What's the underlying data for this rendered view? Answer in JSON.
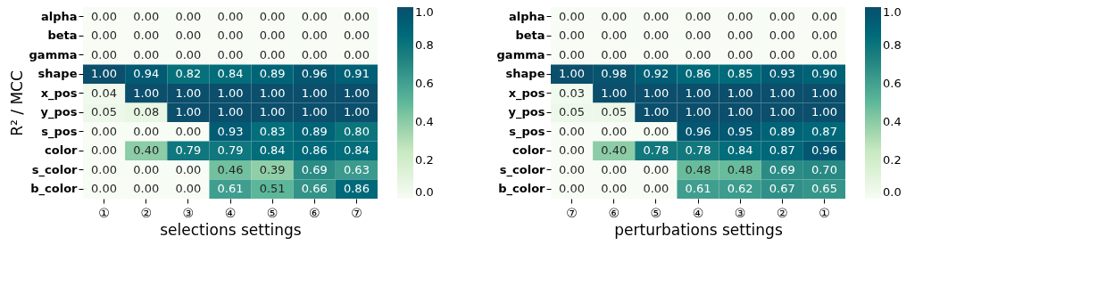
{
  "chart_data": [
    {
      "type": "heatmap",
      "xlabel": "selections settings",
      "ylabel": "R² / MCC",
      "categories": [
        "①",
        "②",
        "③",
        "④",
        "⑤",
        "⑥",
        "⑦"
      ],
      "y_categories": [
        "alpha",
        "beta",
        "gamma",
        "shape",
        "x_pos",
        "y_pos",
        "s_pos",
        "color",
        "s_color",
        "b_color"
      ],
      "cells": [
        [
          0.0,
          0.0,
          0.0,
          0.0,
          0.0,
          0.0,
          0.0
        ],
        [
          0.0,
          0.0,
          0.0,
          0.0,
          0.0,
          0.0,
          0.0
        ],
        [
          0.0,
          0.0,
          0.0,
          0.0,
          0.0,
          0.0,
          0.0
        ],
        [
          1.0,
          0.94,
          0.82,
          0.84,
          0.89,
          0.96,
          0.91
        ],
        [
          0.04,
          1.0,
          1.0,
          1.0,
          1.0,
          1.0,
          1.0
        ],
        [
          0.05,
          0.08,
          1.0,
          1.0,
          1.0,
          1.0,
          1.0
        ],
        [
          0.0,
          0.0,
          0.0,
          0.93,
          0.83,
          0.89,
          0.8
        ],
        [
          0.0,
          0.4,
          0.79,
          0.79,
          0.84,
          0.86,
          0.84
        ],
        [
          0.0,
          0.0,
          0.0,
          0.46,
          0.39,
          0.69,
          0.63
        ],
        [
          0.0,
          0.0,
          0.0,
          0.61,
          0.51,
          0.66,
          0.86
        ]
      ],
      "cell_labels": [
        [
          "0.00",
          "0.00",
          "0.00",
          "0.00",
          "0.00",
          "0.00",
          "0.00"
        ],
        [
          "0.00",
          "0.00",
          "0.00",
          "0.00",
          "0.00",
          "0.00",
          "0.00"
        ],
        [
          "0.00",
          "0.00",
          "0.00",
          "0.00",
          "0.00",
          "0.00",
          "0.00"
        ],
        [
          "1.00",
          "0.94",
          "0.82",
          "0.84",
          "0.89",
          "0.96",
          "0.91"
        ],
        [
          "0.04",
          "1.00",
          "1.00",
          "1.00",
          "1.00",
          "1.00",
          "1.00"
        ],
        [
          "0.05",
          "0.08",
          "1.00",
          "1.00",
          "1.00",
          "1.00",
          "1.00"
        ],
        [
          "0.00",
          "0.00",
          "0.00",
          "0.93",
          "0.83",
          "0.89",
          "0.80"
        ],
        [
          "0.00",
          "0.40",
          "0.79",
          "0.79",
          "0.84",
          "0.86",
          "0.84"
        ],
        [
          "0.00",
          "0.00",
          "0.00",
          "0.46",
          "0.39",
          "0.69",
          "0.63"
        ],
        [
          "0.00",
          "0.00",
          "0.00",
          "0.61",
          "0.51",
          "0.66",
          "0.86"
        ]
      ],
      "data_labels": true,
      "clim": [
        0,
        1
      ],
      "cticks": [
        {
          "value": 0,
          "label": "0.0"
        },
        {
          "value": 0.2,
          "label": "0.2"
        },
        {
          "value": 0.4,
          "label": "0.4"
        },
        {
          "value": 0.6,
          "label": "0.6"
        },
        {
          "value": 0.8,
          "label": "0.8"
        },
        {
          "value": 1,
          "label": "1.0"
        }
      ]
    },
    {
      "type": "heatmap",
      "xlabel": "perturbations settings",
      "categories": [
        "⑦",
        "⑥",
        "⑤",
        "④",
        "③",
        "②",
        "①"
      ],
      "y_categories": [
        "alpha",
        "beta",
        "gamma",
        "shape",
        "x_pos",
        "y_pos",
        "s_pos",
        "color",
        "s_color",
        "b_color"
      ],
      "cells": [
        [
          0.0,
          0.0,
          0.0,
          0.0,
          0.0,
          0.0,
          0.0
        ],
        [
          0.0,
          0.0,
          0.0,
          0.0,
          0.0,
          0.0,
          0.0
        ],
        [
          0.0,
          0.0,
          0.0,
          0.0,
          0.0,
          0.0,
          0.0
        ],
        [
          1.0,
          0.98,
          0.92,
          0.86,
          0.85,
          0.93,
          0.9
        ],
        [
          0.03,
          1.0,
          1.0,
          1.0,
          1.0,
          1.0,
          1.0
        ],
        [
          0.05,
          0.05,
          1.0,
          1.0,
          1.0,
          1.0,
          1.0
        ],
        [
          0.0,
          0.0,
          0.0,
          0.96,
          0.95,
          0.89,
          0.87
        ],
        [
          0.0,
          0.4,
          0.78,
          0.78,
          0.84,
          0.87,
          0.96
        ],
        [
          0.0,
          0.0,
          0.0,
          0.48,
          0.48,
          0.69,
          0.7
        ],
        [
          0.0,
          0.0,
          0.0,
          0.61,
          0.62,
          0.67,
          0.65
        ]
      ],
      "cell_labels": [
        [
          "0.00",
          "0.00",
          "0.00",
          "0.00",
          "0.00",
          "0.00",
          "0.00"
        ],
        [
          "0.00",
          "0.00",
          "0.00",
          "0.00",
          "0.00",
          "0.00",
          "0.00"
        ],
        [
          "0.00",
          "0.00",
          "0.00",
          "0.00",
          "0.00",
          "0.00",
          "0.00"
        ],
        [
          "1.00",
          "0.98",
          "0.92",
          "0.86",
          "0.85",
          "0.93",
          "0.90"
        ],
        [
          "0.03",
          "1.00",
          "1.00",
          "1.00",
          "1.00",
          "1.00",
          "1.00"
        ],
        [
          "0.05",
          "0.05",
          "1.00",
          "1.00",
          "1.00",
          "1.00",
          "1.00"
        ],
        [
          "0.00",
          "0.00",
          "0.00",
          "0.96",
          "0.95",
          "0.89",
          "0.87"
        ],
        [
          "0.00",
          "0.40",
          "0.78",
          "0.78",
          "0.84",
          "0.87",
          "0.96"
        ],
        [
          "0.00",
          "0.00",
          "0.00",
          "0.48",
          "0.48",
          "0.69",
          "0.70"
        ],
        [
          "0.00",
          "0.00",
          "0.00",
          "0.61",
          "0.62",
          "0.67",
          "0.65"
        ]
      ],
      "data_labels": true,
      "clim": [
        0,
        1
      ],
      "cticks": [
        {
          "value": 0,
          "label": "0.0"
        },
        {
          "value": 0.2,
          "label": "0.2"
        },
        {
          "value": 0.4,
          "label": "0.4"
        },
        {
          "value": 0.6,
          "label": "0.6"
        },
        {
          "value": 0.8,
          "label": "0.8"
        },
        {
          "value": 1,
          "label": "1.0"
        }
      ]
    }
  ]
}
